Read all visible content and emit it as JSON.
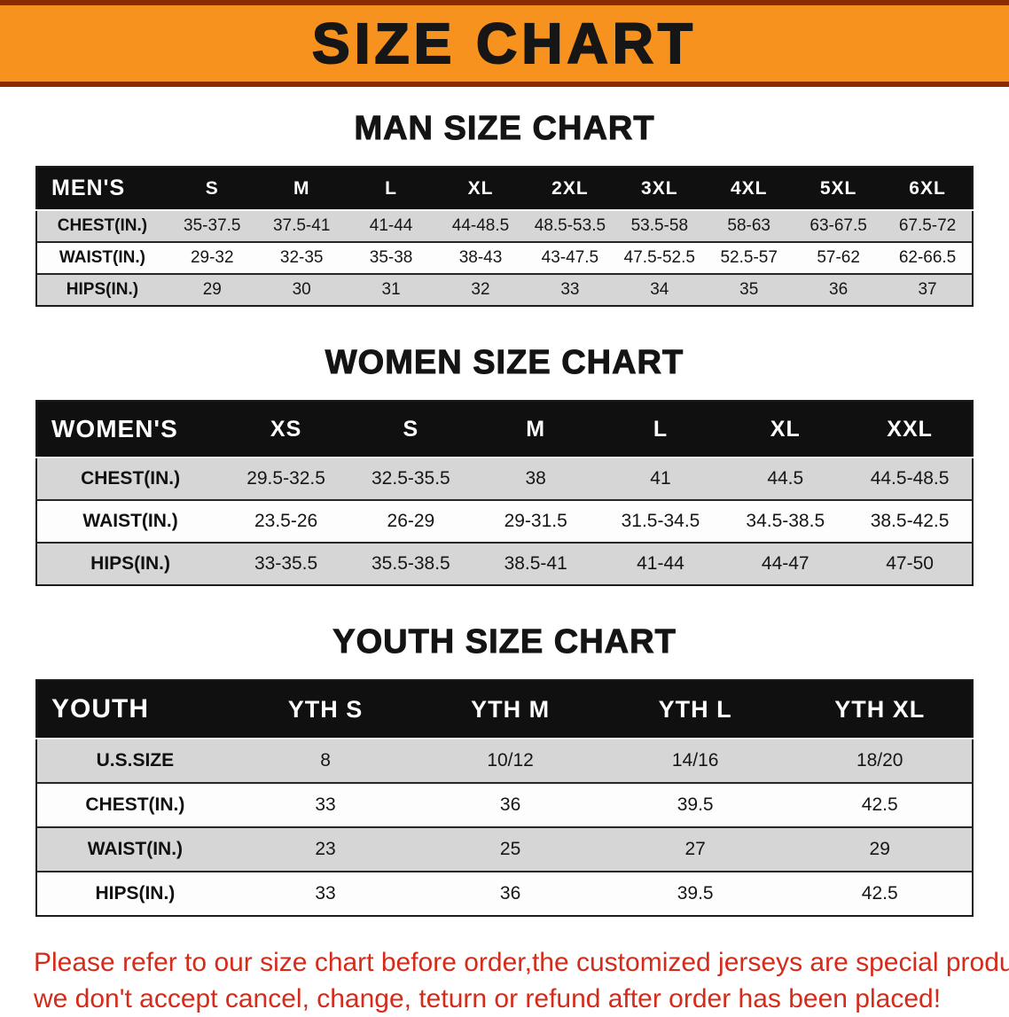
{
  "banner": {
    "title": "SIZE CHART"
  },
  "colors": {
    "banner_orange": "#f7921e",
    "banner_border": "#8a2b00",
    "header_black": "#101010",
    "shaded_row": "#d6d6d6",
    "disclaimer_red": "#d42b1a"
  },
  "sections": [
    {
      "heading": "MAN SIZE CHART",
      "table": {
        "header": [
          "MEN'S",
          "S",
          "M",
          "L",
          "XL",
          "2XL",
          "3XL",
          "4XL",
          "5XL",
          "6XL"
        ],
        "rows": [
          {
            "label": "CHEST(IN.)",
            "values": [
              "35-37.5",
              "37.5-41",
              "41-44",
              "44-48.5",
              "48.5-53.5",
              "53.5-58",
              "58-63",
              "63-67.5",
              "67.5-72"
            ]
          },
          {
            "label": "WAIST(IN.)",
            "values": [
              "29-32",
              "32-35",
              "35-38",
              "38-43",
              "43-47.5",
              "47.5-52.5",
              "52.5-57",
              "57-62",
              "62-66.5"
            ]
          },
          {
            "label": "HIPS(IN.)",
            "values": [
              "29",
              "30",
              "31",
              "32",
              "33",
              "34",
              "35",
              "36",
              "37"
            ]
          }
        ]
      }
    },
    {
      "heading": "WOMEN SIZE CHART",
      "table": {
        "header": [
          "WOMEN'S",
          "XS",
          "S",
          "M",
          "L",
          "XL",
          "XXL"
        ],
        "rows": [
          {
            "label": "CHEST(IN.)",
            "values": [
              "29.5-32.5",
              "32.5-35.5",
              "38",
              "41",
              "44.5",
              "44.5-48.5"
            ]
          },
          {
            "label": "WAIST(IN.)",
            "values": [
              "23.5-26",
              "26-29",
              "29-31.5",
              "31.5-34.5",
              "34.5-38.5",
              "38.5-42.5"
            ]
          },
          {
            "label": "HIPS(IN.)",
            "values": [
              "33-35.5",
              "35.5-38.5",
              "38.5-41",
              "41-44",
              "44-47",
              "47-50"
            ]
          }
        ]
      }
    },
    {
      "heading": "YOUTH SIZE CHART",
      "table": {
        "header": [
          "YOUTH",
          "YTH S",
          "YTH M",
          "YTH L",
          "YTH XL"
        ],
        "rows": [
          {
            "label": "U.S.SIZE",
            "values": [
              "8",
              "10/12",
              "14/16",
              "18/20"
            ]
          },
          {
            "label": "CHEST(IN.)",
            "values": [
              "33",
              "36",
              "39.5",
              "42.5"
            ]
          },
          {
            "label": "WAIST(IN.)",
            "values": [
              "23",
              "25",
              "27",
              "29"
            ]
          },
          {
            "label": "HIPS(IN.)",
            "values": [
              "33",
              "36",
              "39.5",
              "42.5"
            ]
          }
        ]
      }
    }
  ],
  "footer": {
    "line1": "Please refer to our size chart before order,the customized jerseys are special products,",
    "line2": "we don't accept cancel, change, teturn or refund after order has been placed!"
  }
}
